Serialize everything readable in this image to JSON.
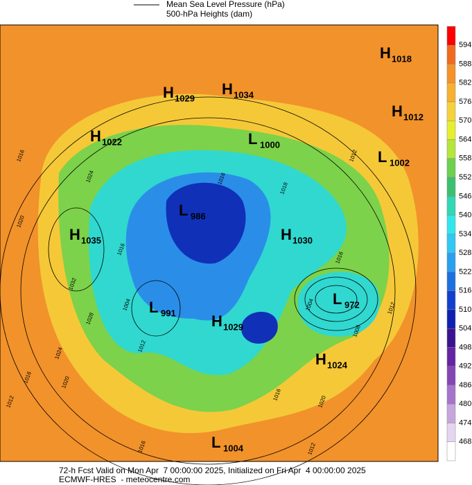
{
  "legend": {
    "pressure": "Mean Sea Level Pressure (hPa)",
    "heights": "500-hPa Heights (dam)"
  },
  "colorbar": {
    "ticks": [
      594,
      588,
      582,
      576,
      570,
      564,
      558,
      552,
      546,
      540,
      534,
      528,
      522,
      516,
      510,
      504,
      498,
      492,
      486,
      480,
      474,
      468
    ],
    "colors": [
      "#ff0000",
      "#f06a1e",
      "#f5922a",
      "#f8b030",
      "#f5d23c",
      "#e6ef2e",
      "#b4e63c",
      "#6cd050",
      "#3cc070",
      "#30d8b4",
      "#30e8ec",
      "#30c8f4",
      "#2aa0f0",
      "#1c70e0",
      "#1040d0",
      "#1020b0",
      "#3a1490",
      "#6424a4",
      "#8446b4",
      "#a674cc",
      "#c6a6dc",
      "#e4d6ee",
      "#ffffff"
    ]
  },
  "centers": [
    {
      "type": "H",
      "value": 1018
    },
    {
      "type": "H",
      "value": 1029
    },
    {
      "type": "H",
      "value": 1034
    },
    {
      "type": "H",
      "value": 1012
    },
    {
      "type": "H",
      "value": 1022
    },
    {
      "type": "L",
      "value": 1000
    },
    {
      "type": "L",
      "value": 1002
    },
    {
      "type": "L",
      "value": 986
    },
    {
      "type": "H",
      "value": 1035
    },
    {
      "type": "H",
      "value": 1030
    },
    {
      "type": "L",
      "value": 972
    },
    {
      "type": "L",
      "value": 991
    },
    {
      "type": "H",
      "value": 1029
    },
    {
      "type": "H",
      "value": 1024
    },
    {
      "type": "L",
      "value": 1004
    }
  ],
  "contour_labels": [
    1016,
    1020,
    1024,
    1032,
    1028,
    1024,
    1016,
    1020,
    1012,
    1016,
    1012,
    1016,
    1020,
    1008,
    1016,
    1012,
    1004,
    1012,
    1004,
    1012,
    1018,
    1016,
    1016
  ],
  "footer": {
    "line1": "72-h Fcst Valid on Mon Apr  7 00:00:00 2025, Initialized on Fri Apr  4 00:00:00 2025",
    "line2": "ECMWF-HRES  - meteocentre.com"
  }
}
